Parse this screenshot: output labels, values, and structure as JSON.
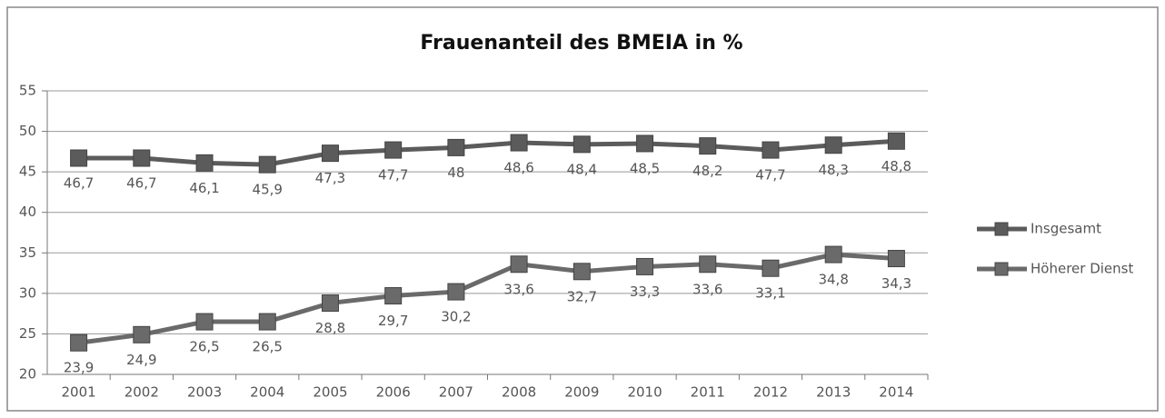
{
  "chart_data": {
    "type": "line",
    "title": "Frauenanteil des BMEIA in %",
    "categories": [
      "2001",
      "2002",
      "2003",
      "2004",
      "2005",
      "2006",
      "2007",
      "2008",
      "2009",
      "2010",
      "2011",
      "2012",
      "2013",
      "2014"
    ],
    "series": [
      {
        "name": "Insgesamt",
        "color": "#5b5b5b",
        "values": [
          46.7,
          46.7,
          46.1,
          45.9,
          47.3,
          47.7,
          48,
          48.6,
          48.4,
          48.5,
          48.2,
          47.7,
          48.3,
          48.8
        ],
        "value_labels": [
          "46,7",
          "46,7",
          "46,1",
          "45,9",
          "47,3",
          "47,7",
          "48",
          "48,6",
          "48,4",
          "48,5",
          "48,2",
          "47,7",
          "48,3",
          "48,8"
        ]
      },
      {
        "name": "Höherer Dienst",
        "color": "#6a6a6a",
        "values": [
          23.9,
          24.9,
          26.5,
          26.5,
          28.8,
          29.7,
          30.2,
          33.6,
          32.7,
          33.3,
          33.6,
          33.1,
          34.8,
          34.3
        ],
        "value_labels": [
          "23,9",
          "24,9",
          "26,5",
          "26,5",
          "28,8",
          "29,7",
          "30,2",
          "33,6",
          "32,7",
          "33,3",
          "33,6",
          "33,1",
          "34,8",
          "34,3"
        ]
      }
    ],
    "ylim": [
      20,
      55
    ],
    "yticks": [
      20,
      25,
      30,
      35,
      40,
      45,
      50,
      55
    ],
    "grid": true,
    "legend": "right"
  }
}
